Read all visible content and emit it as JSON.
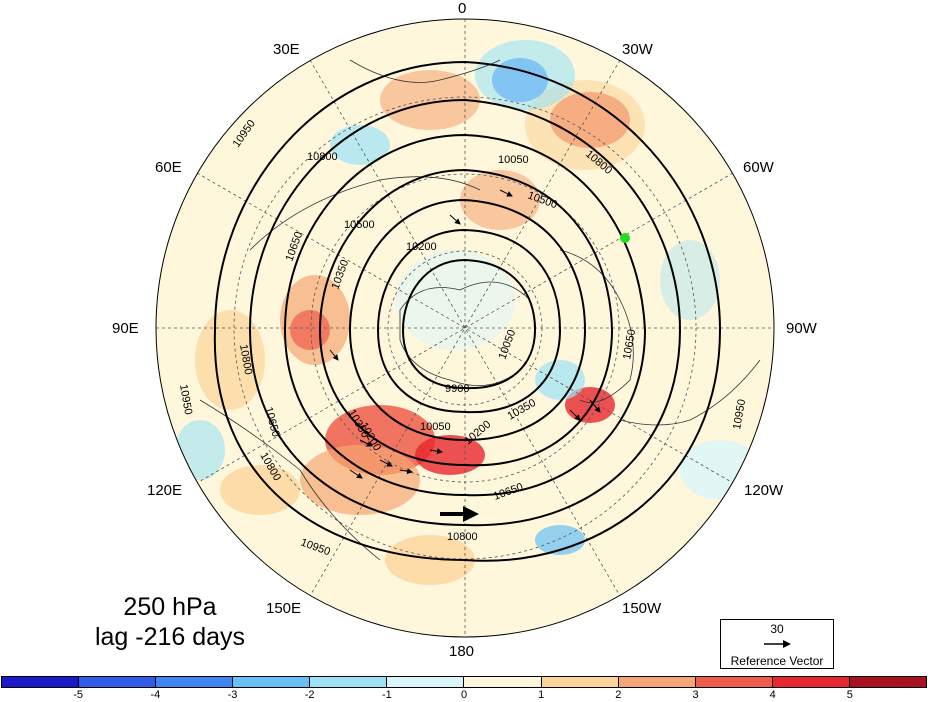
{
  "caption": {
    "level": "250 hPa",
    "lag": "lag -216 days"
  },
  "longitude_labels": {
    "lon_0": "0",
    "lon_30w": "30W",
    "lon_60w": "60W",
    "lon_90w": "90W",
    "lon_120w": "120W",
    "lon_150w": "150W",
    "lon_180": "180",
    "lon_150e": "150E",
    "lon_120e": "120E",
    "lon_90e": "90E",
    "lon_60e": "60E",
    "lon_30e": "30E"
  },
  "contour_labels": [
    "10950",
    "10800",
    "10650",
    "10500",
    "10350",
    "10200",
    "10050",
    "9900",
    "10950",
    "10800",
    "10650",
    "10500",
    "10350",
    "10200",
    "10050",
    "10800",
    "10650",
    "10950",
    "10800",
    "10650",
    "10350",
    "10200",
    "10050",
    "10800",
    "10950"
  ],
  "reference_vector": {
    "value": "30",
    "label": "Reference Vector"
  },
  "colorbar": {
    "labels": [
      "-5",
      "-4",
      "-3",
      "-2",
      "-1",
      "0",
      "1",
      "2",
      "3",
      "4",
      "5"
    ],
    "colors": [
      "#1a1ac8",
      "#2f5de8",
      "#3f86ee",
      "#67c1f5",
      "#9be2f7",
      "#d8f6fb",
      "#fff7dc",
      "#fcd49a",
      "#f5a773",
      "#ef5d4a",
      "#e8262d",
      "#a8111f"
    ]
  },
  "marker": {
    "color": "#22dd22",
    "description": "green point"
  }
}
